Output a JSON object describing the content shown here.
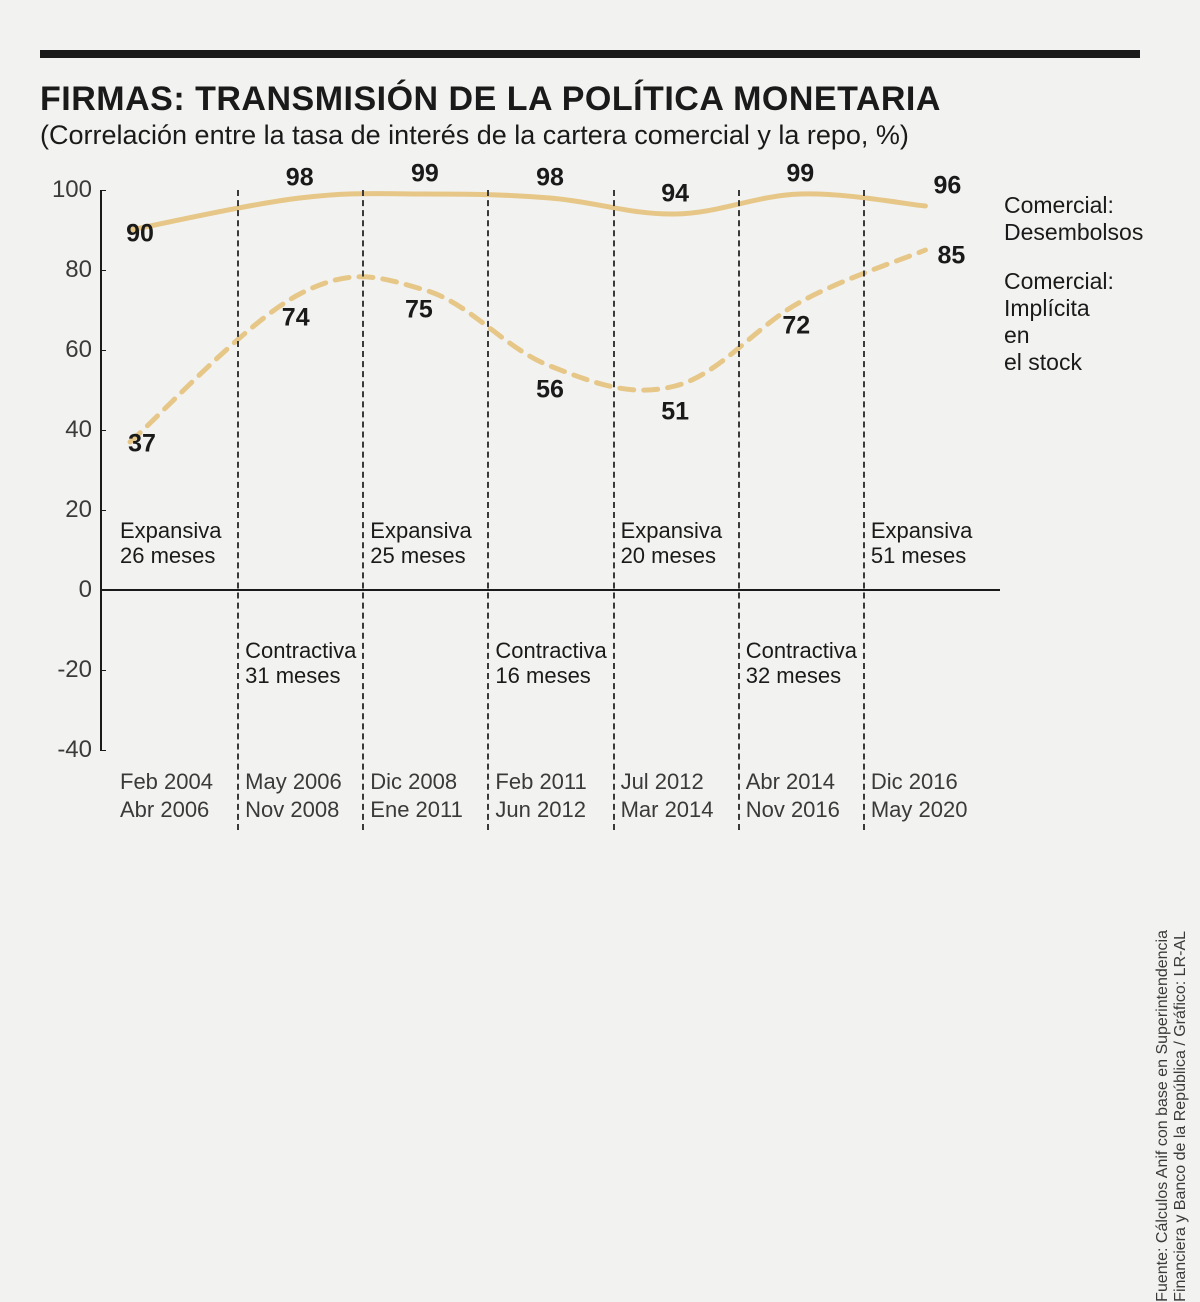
{
  "title": "FIRMAS: TRANSMISIÓN DE LA POLÍTICA MONETARIA",
  "subtitle": "(Correlación entre la tasa de interés de la cartera comercial y la repo, %)",
  "source_note": "Fuente: Cálculos Anif con base en Superintendencia\nFinanciera y Banco de la República / Gráfico: LR-AL",
  "chart": {
    "type": "line",
    "background_color": "#f2f2f0",
    "line_color": "#e6c788",
    "dash_color": "#e6c788",
    "text_color": "#1a1a1a",
    "axis_color": "#1a1a1a",
    "top_rule_color": "#1a1a1a",
    "solid_width": 5,
    "dash_width": 5,
    "dash_pattern": "14 10",
    "title_fontsize": 34,
    "subtitle_fontsize": 27,
    "value_fontsize": 25,
    "tick_fontsize": 24,
    "period_fontsize": 22,
    "xlabel_fontsize": 22,
    "ylim": [
      -40,
      100
    ],
    "ytick_step": 20,
    "yticks": [
      -40,
      -20,
      0,
      20,
      40,
      60,
      80,
      100
    ],
    "categories": [
      {
        "range_a": "Feb 2004",
        "range_b": "Abr 2006"
      },
      {
        "range_a": "May 2006",
        "range_b": "Nov 2008"
      },
      {
        "range_a": "Dic 2008",
        "range_b": "Ene 2011"
      },
      {
        "range_a": "Feb 2011",
        "range_b": "Jun 2012"
      },
      {
        "range_a": "Jul 2012",
        "range_b": "Mar 2014"
      },
      {
        "range_a": "Abr 2014",
        "range_b": "Nov 2016"
      },
      {
        "range_a": "Dic 2016",
        "range_b": "May 2020"
      }
    ],
    "periods": [
      {
        "type": "Expansiva",
        "months": "26 meses",
        "row": "top"
      },
      {
        "type": "Contractiva",
        "months": "31 meses",
        "row": "bottom"
      },
      {
        "type": "Expansiva",
        "months": "25 meses",
        "row": "top"
      },
      {
        "type": "Contractiva",
        "months": "16 meses",
        "row": "bottom"
      },
      {
        "type": "Expansiva",
        "months": "20 meses",
        "row": "top"
      },
      {
        "type": "Contractiva",
        "months": "32 meses",
        "row": "bottom"
      },
      {
        "type": "Expansiva",
        "months": "51 meses",
        "row": "top"
      }
    ],
    "series_solid": {
      "name": "Comercial:",
      "sub": "Desembolsos",
      "values": [
        90,
        98,
        99,
        98,
        94,
        99,
        96
      ]
    },
    "series_dashed": {
      "name": "Comercial:",
      "sub": "Implícita en\nel stock",
      "values": [
        37,
        74,
        75,
        56,
        51,
        72,
        85
      ]
    }
  }
}
